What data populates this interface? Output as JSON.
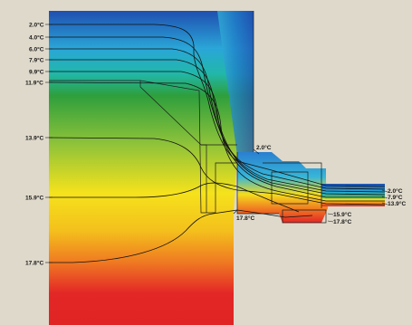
{
  "isotherms": {
    "left": [
      "2.0°C",
      "4.0°C",
      "6.0°C",
      "7.9°C",
      "9.9°C",
      "11.9°C",
      "13.9°C",
      "15.9°C",
      "17.8°C"
    ],
    "window_top": "2.0°C",
    "inner_corner": "17.8°C",
    "frame_bottom": [
      "15.9°C",
      "17.8°C"
    ],
    "right": [
      "2.0°C",
      "7.9°C",
      "13.9°C"
    ]
  },
  "colors": {
    "cold": "#1f4fb0",
    "cool": "#2aa6d8",
    "mild": "#3ca43c",
    "warm": "#f7e41c",
    "hot": "#e32626",
    "background": "#dfd9cb"
  }
}
